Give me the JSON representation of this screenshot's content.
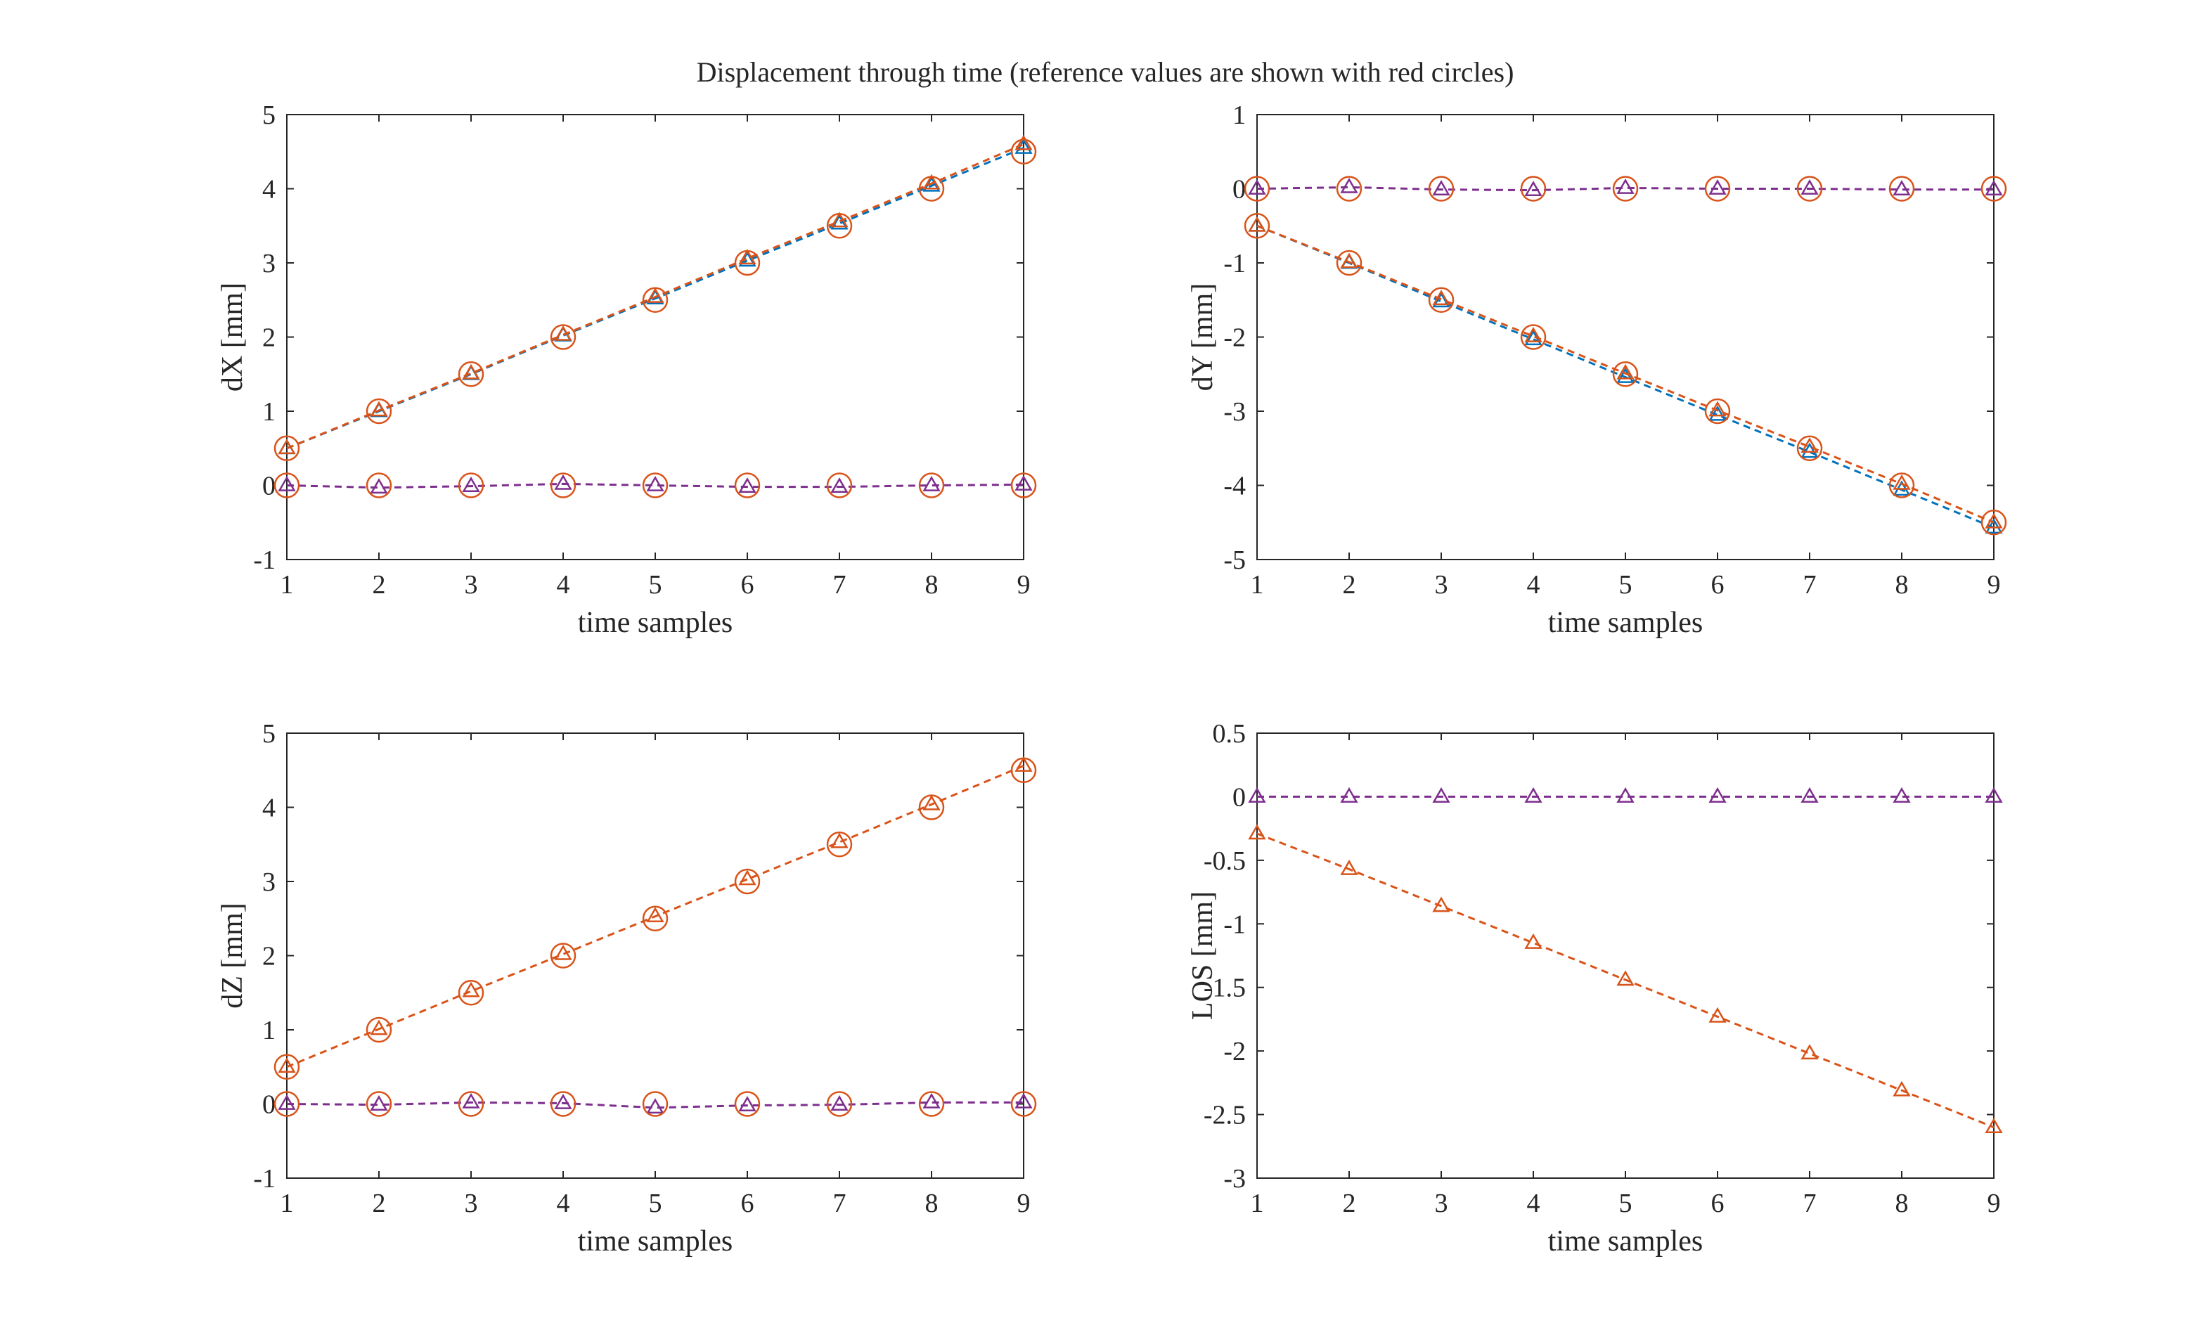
{
  "figure": {
    "title": "Displacement through time (reference values are shown with red circles)"
  },
  "colors": {
    "series_a": "#0072BD",
    "series_b": "#D95319",
    "series_c": "#7E2F8E",
    "reference_circle": "#D95319",
    "axes": "#262626"
  },
  "chart_data": [
    {
      "type": "line",
      "name": "dX",
      "xlabel": "time samples",
      "ylabel": "dX [mm]",
      "xlim": [
        1,
        9
      ],
      "ylim": [
        -1,
        5
      ],
      "xticks": [
        1,
        2,
        3,
        4,
        5,
        6,
        7,
        8,
        9
      ],
      "yticks": [
        -1,
        0,
        1,
        2,
        3,
        4,
        5
      ],
      "x": [
        1,
        2,
        3,
        4,
        5,
        6,
        7,
        8,
        9
      ],
      "series": [
        {
          "color": "#0072BD",
          "marker": "triangle",
          "linestyle": "dashed",
          "values": [
            0.5,
            1.0,
            1.5,
            2.02,
            2.52,
            3.03,
            3.53,
            4.04,
            4.55
          ]
        },
        {
          "color": "#D95319",
          "marker": "triangle",
          "linestyle": "dashed",
          "values": [
            0.5,
            1.01,
            1.51,
            2.03,
            2.54,
            3.06,
            3.56,
            4.07,
            4.6
          ]
        },
        {
          "color": "#7E2F8E",
          "marker": "triangle",
          "linestyle": "dashed",
          "values": [
            0.0,
            -0.03,
            -0.01,
            0.02,
            0.0,
            -0.02,
            -0.02,
            0.0,
            0.01
          ]
        }
      ],
      "reference": {
        "marker": "circle",
        "color": "#D95319",
        "values": [
          [
            0.5,
            1.0,
            1.5,
            2.0,
            2.5,
            3.0,
            3.5,
            4.0,
            4.5
          ],
          [
            0,
            0,
            0,
            0,
            0,
            0,
            0,
            0,
            0
          ]
        ]
      }
    },
    {
      "type": "line",
      "name": "dY",
      "xlabel": "time samples",
      "ylabel": "dY [mm]",
      "xlim": [
        1,
        9
      ],
      "ylim": [
        -5,
        1
      ],
      "xticks": [
        1,
        2,
        3,
        4,
        5,
        6,
        7,
        8,
        9
      ],
      "yticks": [
        -5,
        -4,
        -3,
        -2,
        -1,
        0,
        1
      ],
      "x": [
        1,
        2,
        3,
        4,
        5,
        6,
        7,
        8,
        9
      ],
      "series": [
        {
          "color": "#0072BD",
          "marker": "triangle",
          "linestyle": "dashed",
          "values": [
            -0.5,
            -1.0,
            -1.52,
            -2.03,
            -2.54,
            -3.05,
            -3.55,
            -4.06,
            -4.57
          ]
        },
        {
          "color": "#D95319",
          "marker": "triangle",
          "linestyle": "dashed",
          "values": [
            -0.5,
            -0.99,
            -1.49,
            -1.99,
            -2.49,
            -2.99,
            -3.48,
            -3.98,
            -4.5
          ]
        },
        {
          "color": "#7E2F8E",
          "marker": "triangle",
          "linestyle": "dashed",
          "values": [
            0.0,
            0.02,
            -0.01,
            -0.02,
            0.01,
            0.0,
            0.0,
            -0.01,
            -0.01
          ]
        }
      ],
      "reference": {
        "marker": "circle",
        "color": "#D95319",
        "values": [
          [
            -0.5,
            -1.0,
            -1.5,
            -2.0,
            -2.5,
            -3.0,
            -3.5,
            -4.0,
            -4.5
          ],
          [
            0,
            0,
            0,
            0,
            0,
            0,
            0,
            0,
            0
          ]
        ]
      }
    },
    {
      "type": "line",
      "name": "dZ",
      "xlabel": "time samples",
      "ylabel": "dZ [mm]",
      "xlim": [
        1,
        9
      ],
      "ylim": [
        -1,
        5
      ],
      "xticks": [
        1,
        2,
        3,
        4,
        5,
        6,
        7,
        8,
        9
      ],
      "yticks": [
        -1,
        0,
        1,
        2,
        3,
        4,
        5
      ],
      "x": [
        1,
        2,
        3,
        4,
        5,
        6,
        7,
        8,
        9
      ],
      "series": [
        {
          "color": "#D95319",
          "marker": "triangle",
          "linestyle": "dashed",
          "values": [
            0.5,
            1.01,
            1.52,
            2.02,
            2.53,
            3.03,
            3.53,
            4.04,
            4.56
          ]
        },
        {
          "color": "#7E2F8E",
          "marker": "triangle",
          "linestyle": "dashed",
          "values": [
            0.0,
            -0.01,
            0.02,
            0.01,
            -0.05,
            -0.02,
            -0.01,
            0.02,
            0.02
          ]
        }
      ],
      "reference": {
        "marker": "circle",
        "color": "#D95319",
        "values": [
          [
            0.5,
            1.0,
            1.5,
            2.0,
            2.5,
            3.0,
            3.5,
            4.0,
            4.5
          ],
          [
            0,
            0,
            0,
            0,
            0,
            0,
            0,
            0,
            0
          ]
        ]
      }
    },
    {
      "type": "line",
      "name": "LOS",
      "xlabel": "time samples",
      "ylabel": "LOS [mm]",
      "xlim": [
        1,
        9
      ],
      "ylim": [
        -3,
        0.5
      ],
      "xticks": [
        1,
        2,
        3,
        4,
        5,
        6,
        7,
        8,
        9
      ],
      "yticks": [
        -3,
        -2.5,
        -2,
        -1.5,
        -1,
        -0.5,
        0,
        0.5
      ],
      "x": [
        1,
        2,
        3,
        4,
        5,
        6,
        7,
        8,
        9
      ],
      "series": [
        {
          "color": "#D95319",
          "marker": "triangle",
          "linestyle": "dashed",
          "values": [
            -0.29,
            -0.57,
            -0.86,
            -1.15,
            -1.44,
            -1.73,
            -2.02,
            -2.31,
            -2.6
          ]
        },
        {
          "color": "#7E2F8E",
          "marker": "triangle",
          "linestyle": "dashed",
          "values": [
            0,
            0,
            0,
            0,
            0,
            0,
            0,
            0,
            0
          ]
        }
      ],
      "reference": null
    }
  ]
}
